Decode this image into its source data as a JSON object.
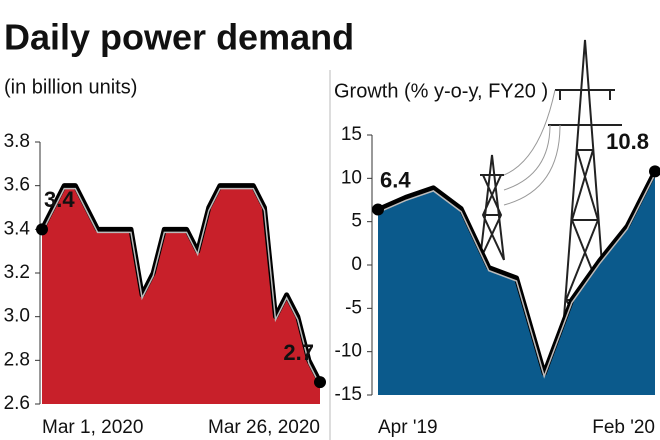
{
  "chart_data": [
    {
      "type": "area",
      "title": "Daily power demand",
      "subtitle": "(in billion units)",
      "categories": [
        "Mar 1, 2020",
        null,
        null,
        null,
        null,
        null,
        null,
        null,
        null,
        null,
        null,
        null,
        null,
        null,
        null,
        null,
        null,
        null,
        null,
        null,
        null,
        null,
        null,
        null,
        null,
        "Mar 26, 2020"
      ],
      "values": [
        3.4,
        3.5,
        3.6,
        3.6,
        3.5,
        3.4,
        3.4,
        3.4,
        3.4,
        3.1,
        3.2,
        3.4,
        3.4,
        3.4,
        3.3,
        3.5,
        3.6,
        3.6,
        3.6,
        3.6,
        3.5,
        3.0,
        3.1,
        3.0,
        2.8,
        2.7
      ],
      "color": "#c8202a",
      "ylim": [
        2.6,
        3.8
      ],
      "yticks": [
        2.6,
        2.8,
        {
          "value": 3,
          "label": "3.0"
        },
        3.2,
        3.4,
        3.6,
        3.8
      ]
    },
    {
      "type": "area",
      "subtitle": "Growth (% y-o-y, FY20 )",
      "categories": [
        "Apr '19",
        null,
        null,
        null,
        null,
        null,
        null,
        null,
        null,
        null,
        "Feb '20"
      ],
      "values": [
        6.4,
        7.8,
        8.9,
        6.5,
        -0.3,
        -1.5,
        -12.5,
        -4,
        0.5,
        4.5,
        10.8
      ],
      "color": "#0b5a8c",
      "ylim": [
        -15,
        15
      ],
      "yticks": [
        -15,
        -10,
        -5,
        0,
        5,
        10,
        15
      ]
    }
  ]
}
